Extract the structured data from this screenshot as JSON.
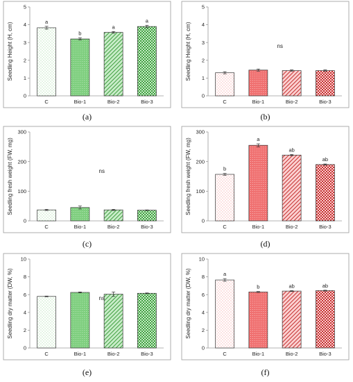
{
  "chart_data": [
    {
      "panel": "(a)",
      "type": "bar",
      "categories": [
        "C",
        "Bio-1",
        "Bio-2",
        "Bio-3"
      ],
      "values": [
        3.83,
        3.2,
        3.57,
        3.9
      ],
      "errors": [
        0.08,
        0.06,
        0.05,
        0.07
      ],
      "significance": [
        "a",
        "b",
        "a",
        "a"
      ],
      "annotation": "",
      "ylabel": "Seedling Height (H, cm)",
      "ylim": [
        0,
        5
      ],
      "yticks": [
        0,
        1,
        2,
        3,
        4,
        5
      ],
      "grid": false,
      "palette": "green",
      "patterns": [
        "dots",
        "solid",
        "hatch",
        "check"
      ]
    },
    {
      "panel": "(b)",
      "type": "bar",
      "categories": [
        "C",
        "Bio-1",
        "Bio-2",
        "Bio-3"
      ],
      "values": [
        1.3,
        1.45,
        1.42,
        1.42
      ],
      "errors": [
        0.06,
        0.06,
        0.04,
        0.04
      ],
      "significance": [
        "",
        "",
        "",
        ""
      ],
      "annotation": "ns",
      "ylabel": "Seedling Height (H, cm)",
      "ylim": [
        0,
        5
      ],
      "yticks": [
        0,
        1,
        2,
        3,
        4,
        5
      ],
      "grid": false,
      "palette": "red",
      "patterns": [
        "dots",
        "solid",
        "hatch",
        "check"
      ]
    },
    {
      "panel": "(c)",
      "type": "bar",
      "categories": [
        "C",
        "Bio-1",
        "Bio-2",
        "Bio-3"
      ],
      "values": [
        37,
        45,
        37,
        36
      ],
      "errors": [
        2,
        5,
        2,
        1
      ],
      "significance": [
        "",
        "",
        "",
        ""
      ],
      "annotation": "ns",
      "ylabel": "Seedling fresh weight (FW, mg)",
      "ylim": [
        0,
        300
      ],
      "yticks": [
        0,
        100,
        200,
        300
      ],
      "grid": false,
      "palette": "green",
      "patterns": [
        "dots",
        "solid",
        "hatch",
        "check"
      ]
    },
    {
      "panel": "(d)",
      "type": "bar",
      "categories": [
        "C",
        "Bio-1",
        "Bio-2",
        "Bio-3"
      ],
      "values": [
        157,
        255,
        222,
        190
      ],
      "errors": [
        3,
        5,
        2,
        2
      ],
      "significance": [
        "b",
        "a",
        "ab",
        "ab"
      ],
      "annotation": "",
      "ylabel": "Seedling fresh weight (FW, mg)",
      "ylim": [
        0,
        300
      ],
      "yticks": [
        0,
        100,
        200,
        300
      ],
      "grid": false,
      "palette": "red",
      "patterns": [
        "dots",
        "solid",
        "hatch",
        "check"
      ]
    },
    {
      "panel": "(e)",
      "type": "bar",
      "categories": [
        "C",
        "Bio-1",
        "Bio-2",
        "Bio-3"
      ],
      "values": [
        5.8,
        6.25,
        6.05,
        6.15
      ],
      "errors": [
        0.04,
        0.05,
        0.25,
        0.04
      ],
      "significance": [
        "",
        "",
        "",
        ""
      ],
      "annotation": "ns",
      "ylabel": "Seedling dry matter (DW, %)",
      "ylim": [
        0,
        10
      ],
      "yticks": [
        0,
        2,
        4,
        6,
        8,
        10
      ],
      "grid": false,
      "palette": "green",
      "patterns": [
        "dots",
        "solid",
        "hatch",
        "check"
      ]
    },
    {
      "panel": "(f)",
      "type": "bar",
      "categories": [
        "C",
        "Bio-1",
        "Bio-2",
        "Bio-3"
      ],
      "values": [
        7.65,
        6.3,
        6.4,
        6.45
      ],
      "errors": [
        0.15,
        0.05,
        0.05,
        0.05
      ],
      "significance": [
        "a",
        "b",
        "ab",
        "ab"
      ],
      "annotation": "",
      "ylabel": "Seedling dry matter (DW, %)",
      "ylim": [
        0,
        10
      ],
      "yticks": [
        0,
        2,
        4,
        6,
        8,
        10
      ],
      "grid": false,
      "palette": "red",
      "patterns": [
        "dots",
        "solid",
        "hatch",
        "check"
      ]
    }
  ],
  "colors": {
    "green_fill": "#7fcf7f",
    "green_light": "#c8ecc8",
    "green_stroke": "#3f9f3f",
    "red_fill": "#f07070",
    "red_light": "#fbd0d0",
    "red_stroke": "#c43030",
    "dots_bg": "#ffffff"
  }
}
